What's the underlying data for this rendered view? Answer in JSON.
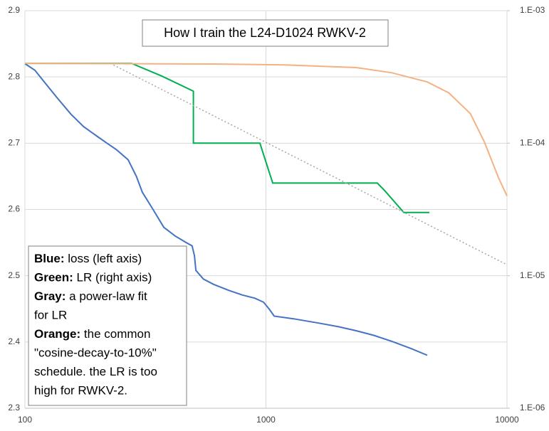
{
  "chart_data": {
    "type": "line",
    "title": "How I train the L24-D1024 RWKV-2",
    "xscale": "log",
    "xlim": [
      100,
      10000
    ],
    "xticks": [
      100,
      1000,
      10000
    ],
    "ylim": [
      2.3,
      2.9
    ],
    "yticks": [
      2.3,
      2.4,
      2.5,
      2.6,
      2.7,
      2.8,
      2.9
    ],
    "y2scale": "log",
    "y2lim": [
      1e-06,
      0.001
    ],
    "y2ticks": [
      {
        "value": 1e-06,
        "label": "1.E-06"
      },
      {
        "value": 1e-05,
        "label": "1.E-05"
      },
      {
        "value": 0.0001,
        "label": "1.E-04"
      },
      {
        "value": 0.001,
        "label": "1.E-03"
      }
    ],
    "grid": true,
    "series": [
      {
        "name": "loss",
        "color": "#4472c4",
        "dash": false,
        "x": [
          100,
          110,
          120,
          135,
          155,
          175,
          200,
          219,
          240,
          268,
          290,
          307,
          340,
          377,
          420,
          462,
          494,
          505,
          512,
          550,
          606,
          700,
          796,
          900,
          977,
          1030,
          1082,
          1300,
          1683,
          2000,
          2366,
          2800,
          3327,
          4000,
          4669
        ],
        "values": [
          2.82,
          2.81,
          2.793,
          2.77,
          2.744,
          2.725,
          2.71,
          2.7,
          2.69,
          2.675,
          2.65,
          2.626,
          2.6,
          2.573,
          2.56,
          2.551,
          2.545,
          2.53,
          2.508,
          2.495,
          2.487,
          2.478,
          2.471,
          2.466,
          2.46,
          2.45,
          2.439,
          2.435,
          2.428,
          2.423,
          2.417,
          2.41,
          2.401,
          2.39,
          2.38
        ]
      },
      {
        "name": "LR",
        "color": "#00b050",
        "axis": "y2",
        "dash": false,
        "x": [
          100,
          277,
          371,
          500,
          500,
          944,
          1067,
          2897,
          3105,
          3733,
          4764
        ],
        "values": [
          0.0004,
          0.0004,
          0.00032,
          0.000247,
          0.0001,
          0.0001,
          5e-05,
          5e-05,
          4.4e-05,
          3e-05,
          3e-05
        ]
      },
      {
        "name": "power-law fit",
        "color": "#a6a6a6",
        "axis": "y2",
        "dash": true,
        "x": [
          226,
          10000
        ],
        "values": [
          0.0004,
          1.21e-05
        ]
      },
      {
        "name": "cosine-decay-to-10%",
        "color": "#f4b183",
        "axis": "y2",
        "dash": false,
        "x": [
          100,
          606,
          1197,
          2366,
          3327,
          4669,
          5734,
          7049,
          8060,
          9218,
          10000
        ],
        "values": [
          0.0004,
          0.000396,
          0.00039,
          0.000372,
          0.00034,
          0.00029,
          0.00024,
          0.000167,
          0.000102,
          5.5e-05,
          4e-05
        ]
      }
    ],
    "note": [
      {
        "bold": "Blue:",
        "text": " loss (left axis)"
      },
      {
        "bold": "Green:",
        "text": " LR (right axis)"
      },
      {
        "bold": "Gray:",
        "text": " a power-law fit"
      },
      {
        "text": "for LR"
      },
      {
        "bold": "Orange:",
        "text": " the common"
      },
      {
        "text": "\"cosine-decay-to-10%\""
      },
      {
        "text": "schedule. the LR is too"
      },
      {
        "text": "high for RWKV-2."
      }
    ]
  }
}
